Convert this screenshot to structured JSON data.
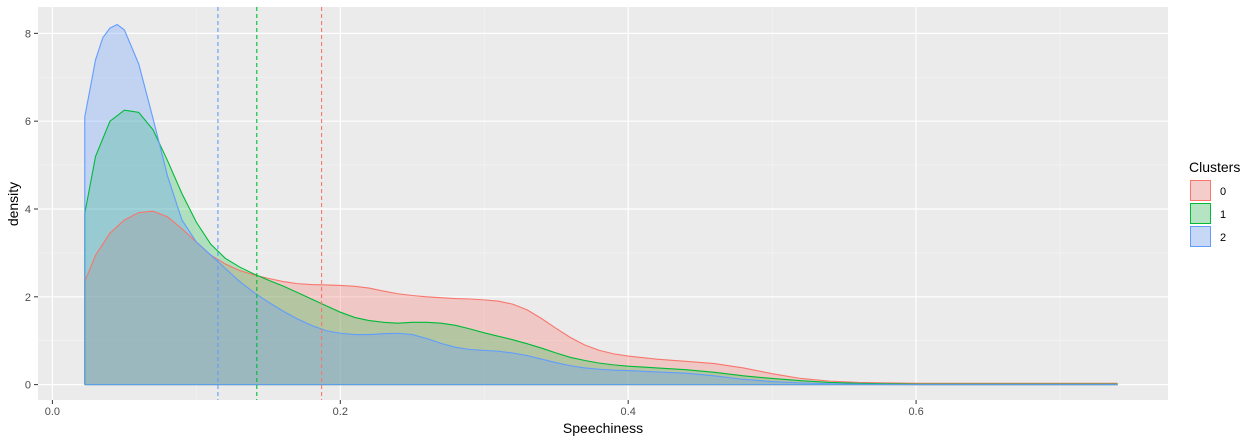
{
  "chart_data": {
    "type": "area",
    "xlabel": "Speechiness",
    "ylabel": "density",
    "xlim": [
      -0.01,
      0.775
    ],
    "ylim": [
      -0.35,
      8.6
    ],
    "x_ticks": [
      0.0,
      0.2,
      0.4,
      0.6
    ],
    "x_tick_labels": [
      "0.0",
      "0.2",
      "0.4",
      "0.6"
    ],
    "y_ticks": [
      0,
      2,
      4,
      6,
      8
    ],
    "y_tick_labels": [
      "0",
      "2",
      "4",
      "6",
      "8"
    ],
    "grid": true,
    "legend": {
      "title": "Clusters",
      "position": "right"
    },
    "series": [
      {
        "name": "0",
        "color": "#F8766D",
        "fill": "rgba(248,118,109,0.3)",
        "mean_line": 0.187,
        "points": [
          [
            0.0225,
            2.35
          ],
          [
            0.03,
            2.95
          ],
          [
            0.04,
            3.45
          ],
          [
            0.05,
            3.75
          ],
          [
            0.06,
            3.92
          ],
          [
            0.07,
            3.95
          ],
          [
            0.08,
            3.82
          ],
          [
            0.09,
            3.55
          ],
          [
            0.1,
            3.25
          ],
          [
            0.11,
            2.95
          ],
          [
            0.12,
            2.75
          ],
          [
            0.13,
            2.6
          ],
          [
            0.14,
            2.5
          ],
          [
            0.15,
            2.42
          ],
          [
            0.16,
            2.35
          ],
          [
            0.17,
            2.3
          ],
          [
            0.18,
            2.28
          ],
          [
            0.19,
            2.27
          ],
          [
            0.2,
            2.26
          ],
          [
            0.21,
            2.24
          ],
          [
            0.22,
            2.2
          ],
          [
            0.23,
            2.13
          ],
          [
            0.24,
            2.07
          ],
          [
            0.25,
            2.03
          ],
          [
            0.26,
            2.0
          ],
          [
            0.27,
            1.98
          ],
          [
            0.28,
            1.96
          ],
          [
            0.29,
            1.95
          ],
          [
            0.3,
            1.93
          ],
          [
            0.31,
            1.9
          ],
          [
            0.32,
            1.83
          ],
          [
            0.33,
            1.7
          ],
          [
            0.34,
            1.5
          ],
          [
            0.35,
            1.28
          ],
          [
            0.36,
            1.07
          ],
          [
            0.37,
            0.9
          ],
          [
            0.38,
            0.78
          ],
          [
            0.39,
            0.7
          ],
          [
            0.4,
            0.65
          ],
          [
            0.42,
            0.58
          ],
          [
            0.44,
            0.53
          ],
          [
            0.46,
            0.48
          ],
          [
            0.48,
            0.38
          ],
          [
            0.5,
            0.25
          ],
          [
            0.52,
            0.14
          ],
          [
            0.54,
            0.08
          ],
          [
            0.56,
            0.05
          ],
          [
            0.58,
            0.04
          ],
          [
            0.6,
            0.03
          ],
          [
            0.65,
            0.03
          ],
          [
            0.7,
            0.03
          ],
          [
            0.74,
            0.03
          ]
        ]
      },
      {
        "name": "1",
        "color": "#00BA38",
        "fill": "rgba(0,186,56,0.25)",
        "mean_line": 0.142,
        "points": [
          [
            0.0225,
            3.9
          ],
          [
            0.03,
            5.2
          ],
          [
            0.04,
            6.0
          ],
          [
            0.05,
            6.25
          ],
          [
            0.06,
            6.2
          ],
          [
            0.07,
            5.8
          ],
          [
            0.08,
            5.1
          ],
          [
            0.09,
            4.35
          ],
          [
            0.1,
            3.7
          ],
          [
            0.11,
            3.2
          ],
          [
            0.12,
            2.88
          ],
          [
            0.13,
            2.68
          ],
          [
            0.14,
            2.52
          ],
          [
            0.15,
            2.38
          ],
          [
            0.16,
            2.25
          ],
          [
            0.17,
            2.1
          ],
          [
            0.18,
            1.95
          ],
          [
            0.19,
            1.8
          ],
          [
            0.2,
            1.65
          ],
          [
            0.21,
            1.53
          ],
          [
            0.22,
            1.46
          ],
          [
            0.23,
            1.42
          ],
          [
            0.24,
            1.4
          ],
          [
            0.25,
            1.42
          ],
          [
            0.26,
            1.42
          ],
          [
            0.27,
            1.4
          ],
          [
            0.28,
            1.35
          ],
          [
            0.29,
            1.27
          ],
          [
            0.3,
            1.18
          ],
          [
            0.31,
            1.1
          ],
          [
            0.32,
            1.02
          ],
          [
            0.33,
            0.93
          ],
          [
            0.34,
            0.83
          ],
          [
            0.35,
            0.72
          ],
          [
            0.36,
            0.62
          ],
          [
            0.37,
            0.55
          ],
          [
            0.38,
            0.49
          ],
          [
            0.39,
            0.45
          ],
          [
            0.4,
            0.42
          ],
          [
            0.42,
            0.38
          ],
          [
            0.44,
            0.34
          ],
          [
            0.46,
            0.28
          ],
          [
            0.48,
            0.2
          ],
          [
            0.5,
            0.14
          ],
          [
            0.52,
            0.09
          ],
          [
            0.54,
            0.05
          ],
          [
            0.56,
            0.03
          ],
          [
            0.58,
            0.02
          ],
          [
            0.6,
            0.01
          ],
          [
            0.65,
            0.01
          ],
          [
            0.7,
            0.01
          ],
          [
            0.74,
            0.01
          ]
        ]
      },
      {
        "name": "2",
        "color": "#619CFF",
        "fill": "rgba(97,156,255,0.3)",
        "mean_line": 0.115,
        "points": [
          [
            0.0225,
            6.1
          ],
          [
            0.03,
            7.4
          ],
          [
            0.035,
            7.9
          ],
          [
            0.04,
            8.12
          ],
          [
            0.045,
            8.2
          ],
          [
            0.05,
            8.08
          ],
          [
            0.06,
            7.3
          ],
          [
            0.07,
            6.05
          ],
          [
            0.08,
            4.75
          ],
          [
            0.09,
            3.75
          ],
          [
            0.1,
            3.25
          ],
          [
            0.11,
            2.95
          ],
          [
            0.12,
            2.65
          ],
          [
            0.13,
            2.35
          ],
          [
            0.14,
            2.1
          ],
          [
            0.15,
            1.88
          ],
          [
            0.16,
            1.68
          ],
          [
            0.17,
            1.5
          ],
          [
            0.18,
            1.35
          ],
          [
            0.19,
            1.23
          ],
          [
            0.2,
            1.17
          ],
          [
            0.21,
            1.14
          ],
          [
            0.22,
            1.14
          ],
          [
            0.23,
            1.16
          ],
          [
            0.24,
            1.17
          ],
          [
            0.25,
            1.14
          ],
          [
            0.26,
            1.05
          ],
          [
            0.27,
            0.94
          ],
          [
            0.28,
            0.85
          ],
          [
            0.29,
            0.8
          ],
          [
            0.3,
            0.78
          ],
          [
            0.31,
            0.76
          ],
          [
            0.32,
            0.72
          ],
          [
            0.33,
            0.66
          ],
          [
            0.34,
            0.58
          ],
          [
            0.35,
            0.5
          ],
          [
            0.36,
            0.43
          ],
          [
            0.37,
            0.38
          ],
          [
            0.38,
            0.35
          ],
          [
            0.39,
            0.33
          ],
          [
            0.4,
            0.32
          ],
          [
            0.42,
            0.29
          ],
          [
            0.44,
            0.26
          ],
          [
            0.46,
            0.2
          ],
          [
            0.48,
            0.12
          ],
          [
            0.5,
            0.07
          ],
          [
            0.52,
            0.04
          ],
          [
            0.54,
            0.02
          ],
          [
            0.56,
            0.01
          ],
          [
            0.6,
            0.0
          ],
          [
            0.65,
            0.0
          ],
          [
            0.7,
            0.0
          ],
          [
            0.74,
            0.0
          ]
        ]
      }
    ]
  }
}
